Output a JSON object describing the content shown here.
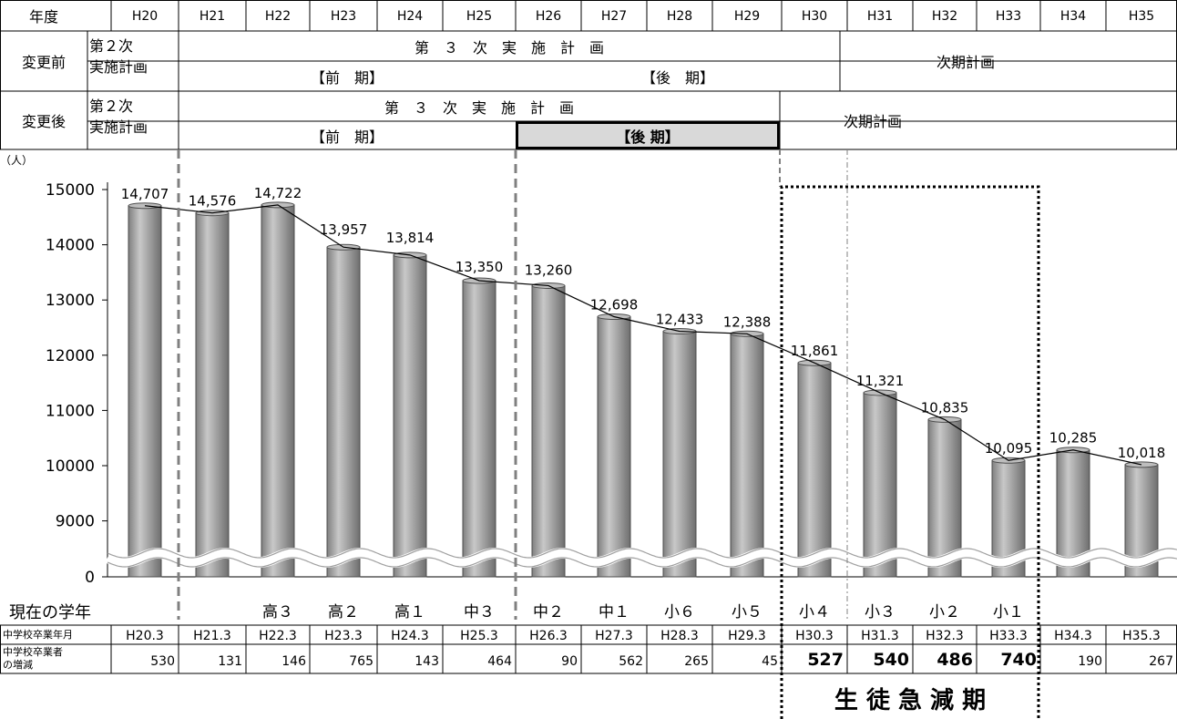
{
  "header": {
    "row_label": "年度",
    "years": [
      "H20",
      "H21",
      "H22",
      "H23",
      "H24",
      "H25",
      "H26",
      "H27",
      "H28",
      "H29",
      "H30",
      "H31",
      "H32",
      "H33",
      "H34",
      "H35"
    ]
  },
  "plan_before": {
    "label": "変更前",
    "second_plan": "第２次\n実施計画",
    "third_plan_spaced": "第　３　次　実　施　計　画",
    "early": "【前　期】",
    "late": "【後　期】",
    "next_plan": "次期計画"
  },
  "plan_after": {
    "label": "変更後",
    "second_plan": "第２次\n実施計画",
    "third_plan_spaced": "第　３　次　実　施　計　画",
    "early": "【前　期】",
    "late": "【後 期】",
    "next_plan": "次期計画"
  },
  "chart_data": {
    "type": "bar",
    "title": "",
    "y_unit": "（人）",
    "categories": [
      "H20",
      "H21",
      "H22",
      "H23",
      "H24",
      "H25",
      "H26",
      "H27",
      "H28",
      "H29",
      "H30",
      "H31",
      "H32",
      "H33",
      "H34",
      "H35"
    ],
    "series": [
      {
        "values": [
          14707,
          14576,
          14722,
          13957,
          13814,
          13350,
          13260,
          12698,
          12433,
          12388,
          11861,
          11321,
          10835,
          10095,
          10285,
          10018
        ]
      }
    ],
    "value_labels": [
      "14,707",
      "14,576",
      "14,722",
      "13,957",
      "13,814",
      "13,350",
      "13,260",
      "12,698",
      "12,433",
      "12,388",
      "11,861",
      "11,321",
      "10,835",
      "10,095",
      "10,285",
      "10,018"
    ],
    "y_ticks": [
      "0",
      "9000",
      "10000",
      "11000",
      "12000",
      "13000",
      "14000",
      "15000"
    ],
    "y_axis_break": true,
    "ylim": [
      0,
      15000
    ]
  },
  "bottom": {
    "grade_label": "現在の学年",
    "grades": [
      "",
      "",
      "高３",
      "高２",
      "高１",
      "中３",
      "中２",
      "中１",
      "小６",
      "小５",
      "小４",
      "小３",
      "小２",
      "小１",
      "",
      ""
    ],
    "grad_month_label": "中学校卒業年月",
    "grad_months": [
      "H20.3",
      "H21.3",
      "H22.3",
      "H23.3",
      "H24.3",
      "H25.3",
      "H26.3",
      "H27.3",
      "H28.3",
      "H29.3",
      "H30.3",
      "H31.3",
      "H32.3",
      "H33.3",
      "H34.3",
      "H35.3"
    ],
    "change_label_1": "中学校卒業者",
    "change_label_2": "の増減",
    "changes": [
      "530",
      "131",
      "146",
      "765",
      "143",
      "464",
      "90",
      "562",
      "265",
      "45",
      "527",
      "540",
      "486",
      "740",
      "190",
      "267"
    ],
    "rapid_decline_label": "生 徒 急 減 期"
  },
  "colors": {
    "bar_fill": "#a6a6a6",
    "bar_edge": "#4d4d4d",
    "highlight_fill": "#d9d9d9",
    "line": "#000000"
  }
}
